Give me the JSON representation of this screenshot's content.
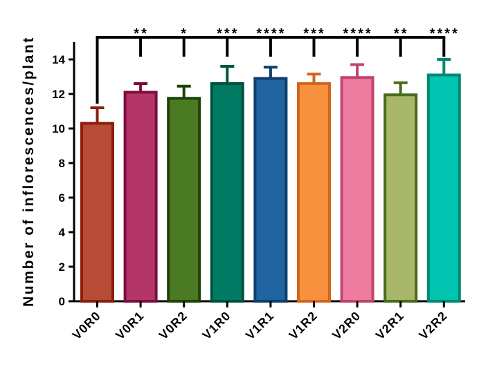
{
  "chart_data": {
    "type": "bar",
    "title": "",
    "xlabel": "",
    "ylabel": "Number of inflorescences/plant",
    "ylim": [
      0,
      15
    ],
    "yticks": [
      "0",
      "2",
      "4",
      "6",
      "8",
      "10",
      "12",
      "14"
    ],
    "categories": [
      "V0R0",
      "V0R1",
      "V0R2",
      "V1R0",
      "V1R1",
      "V1R2",
      "V2R0",
      "V2R1",
      "V2R2"
    ],
    "values": [
      10.3,
      12.1,
      11.75,
      12.6,
      12.9,
      12.6,
      12.95,
      11.95,
      13.1
    ],
    "error": [
      0.9,
      0.5,
      0.7,
      1.0,
      0.65,
      0.55,
      0.75,
      0.7,
      0.9
    ],
    "fill_colors": [
      "#b84b36",
      "#b43567",
      "#4a7a22",
      "#007a62",
      "#1f64a0",
      "#f8913e",
      "#ee7ba0",
      "#a8b76a",
      "#00c4b0"
    ],
    "edge_colors": [
      "#8a1d0c",
      "#7c0e3e",
      "#1e4208",
      "#00543e",
      "#0e3f6d",
      "#d2651b",
      "#c0446a",
      "#4a6b1a",
      "#008a72"
    ],
    "significance": {
      "reference": "V0R0",
      "labels": [
        "",
        "**",
        "*",
        "***",
        "****",
        "***",
        "****",
        "**",
        "****"
      ]
    },
    "grid": false,
    "legend": "none"
  }
}
